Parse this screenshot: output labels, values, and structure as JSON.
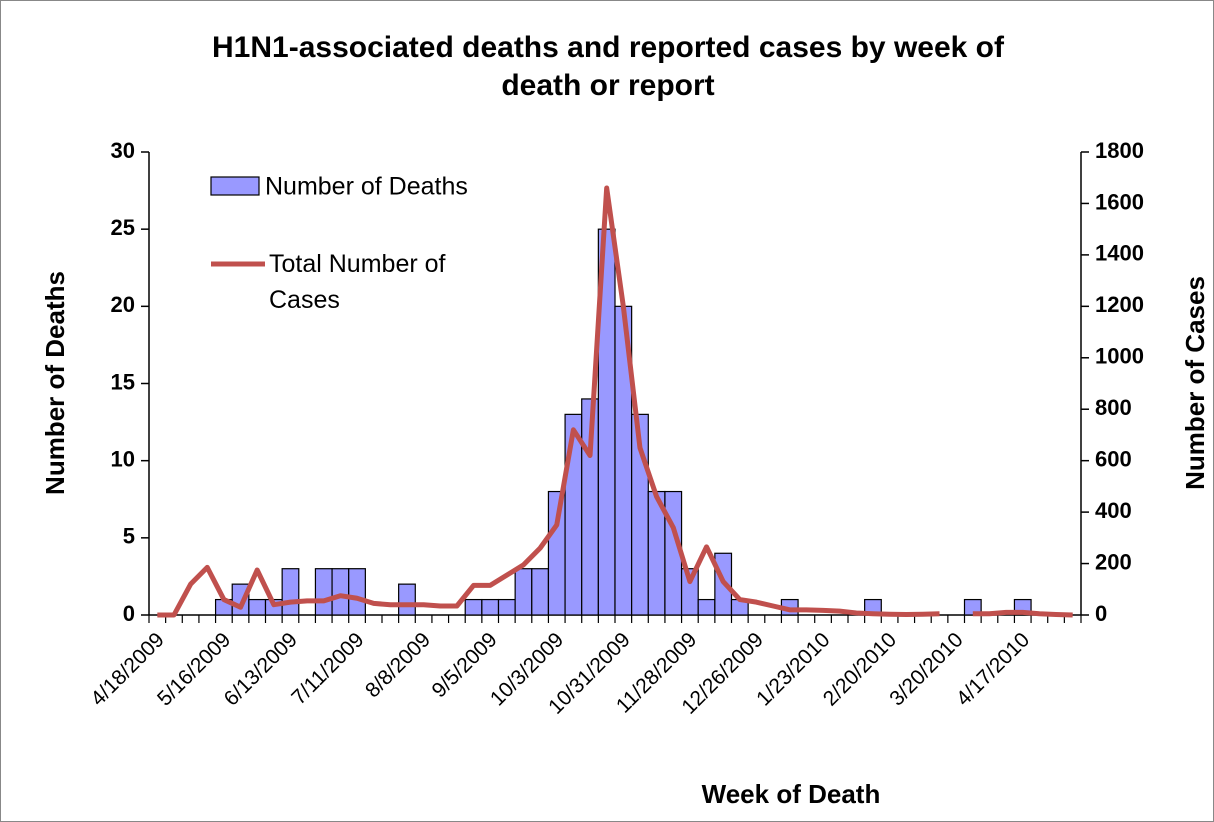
{
  "chart_data": {
    "type": "bar",
    "title": "H1N1-associated deaths and reported cases by week of death or report",
    "x_label": "Week of Death",
    "y_label": "Number of Deaths",
    "y2_label": "Number of Cases",
    "categories": [
      "4/18/2009",
      null,
      null,
      null,
      "5/16/2009",
      null,
      null,
      null,
      "6/13/2009",
      null,
      null,
      null,
      "7/11/2009",
      null,
      null,
      null,
      "8/8/2009",
      null,
      null,
      null,
      "9/5/2009",
      null,
      null,
      null,
      "10/3/2009",
      null,
      null,
      null,
      "10/31/2009",
      null,
      null,
      null,
      "11/28/2009",
      null,
      null,
      null,
      "12/26/2009",
      null,
      null,
      null,
      "1/23/2010",
      null,
      null,
      null,
      "2/20/2010",
      null,
      null,
      null,
      "3/20/2010",
      null,
      null,
      null,
      "4/17/2010",
      null,
      null,
      null
    ],
    "series": [
      {
        "name": "Number of Deaths",
        "type": "bar",
        "color": "#9999ff",
        "values": [
          0,
          0,
          0,
          0,
          1,
          2,
          1,
          1,
          3,
          0,
          3,
          3,
          3,
          0,
          0,
          2,
          0,
          0,
          0,
          1,
          1,
          1,
          3,
          3,
          8,
          13,
          14,
          25,
          20,
          13,
          8,
          8,
          3,
          1,
          4,
          1,
          0,
          0,
          1,
          0,
          0,
          0,
          0,
          1,
          0,
          0,
          0,
          0,
          0,
          1,
          0,
          0,
          1,
          0,
          0,
          0
        ]
      },
      {
        "name": "Total Number of Cases",
        "type": "line",
        "axis": "y2",
        "color": "#c0504d",
        "values": [
          0,
          0,
          120,
          185,
          60,
          30,
          175,
          40,
          50,
          55,
          55,
          75,
          65,
          45,
          40,
          40,
          40,
          35,
          35,
          115,
          115,
          155,
          195,
          260,
          350,
          720,
          620,
          1660,
          1200,
          650,
          460,
          340,
          130,
          265,
          130,
          60,
          50,
          35,
          20,
          20,
          18,
          15,
          8,
          5,
          3,
          2,
          3,
          5,
          null,
          5,
          5,
          10,
          10,
          5,
          2,
          0
        ]
      }
    ],
    "ylim": [
      0,
      30
    ],
    "yticks": [
      0,
      5,
      10,
      15,
      20,
      25,
      30
    ],
    "y2lim": [
      0,
      1800
    ],
    "y2ticks": [
      0,
      200,
      400,
      600,
      800,
      1000,
      1200,
      1400,
      1600,
      1800
    ],
    "grid": false,
    "legend": "top-left"
  }
}
